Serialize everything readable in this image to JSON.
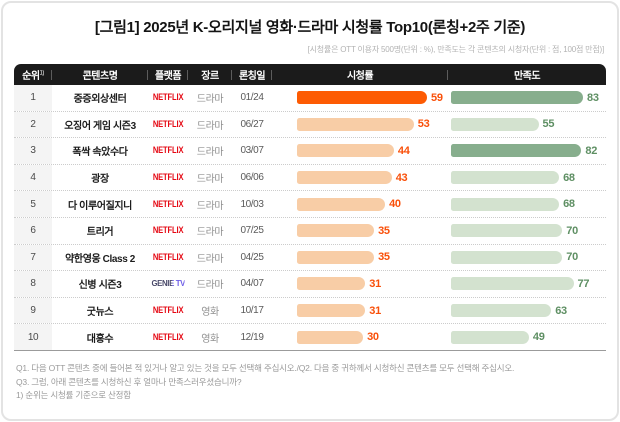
{
  "colors": {
    "header_bg": "#1b1b1b",
    "netflix_red": "#e50914",
    "genie_dark": "#474768",
    "genie_purple": "#6c5ce7",
    "rating_strong": "#fd5b03",
    "rating_light": "#f8cda6",
    "rating_value": "#f9500a",
    "sat_dark": "#87ae8d",
    "sat_light": "#d3e2cf",
    "sat_value": "#5e8f63"
  },
  "header": {
    "title": "[그림1] 2025년 K-오리지널 영화·드라마 시청률 Top10(론칭+2주 기준)",
    "subtitle": "[시청률은 OTT 이용자 500명(단위 : %), 만족도는 각 콘텐츠의 시청자(단위 : 점, 100점 만점)]"
  },
  "table": {
    "columns": {
      "rank": "순위",
      "rank_sup": "1)",
      "title": "콘텐츠명",
      "platform": "플랫폼",
      "genre": "장르",
      "launch": "론칭일",
      "rating": "시청률",
      "satisfaction": "만족도"
    },
    "rows": [
      {
        "rank": "1",
        "title": "중증외상센터",
        "platform": "NETFLIX",
        "genre": "드라마",
        "launch": "01/24",
        "rating": 59,
        "satisfaction": 83,
        "rating_tone": "strong",
        "sat_tone": "dark"
      },
      {
        "rank": "2",
        "title": "오징어 게임 시즌3",
        "platform": "NETFLIX",
        "genre": "드라마",
        "launch": "06/27",
        "rating": 53,
        "satisfaction": 55,
        "rating_tone": "light",
        "sat_tone": "light"
      },
      {
        "rank": "3",
        "title": "폭싹 속았수다",
        "platform": "NETFLIX",
        "genre": "드라마",
        "launch": "03/07",
        "rating": 44,
        "satisfaction": 82,
        "rating_tone": "light",
        "sat_tone": "dark"
      },
      {
        "rank": "4",
        "title": "광장",
        "platform": "NETFLIX",
        "genre": "드라마",
        "launch": "06/06",
        "rating": 43,
        "satisfaction": 68,
        "rating_tone": "light",
        "sat_tone": "light"
      },
      {
        "rank": "5",
        "title": "다 이루어질지니",
        "platform": "NETFLIX",
        "genre": "드라마",
        "launch": "10/03",
        "rating": 40,
        "satisfaction": 68,
        "rating_tone": "light",
        "sat_tone": "light"
      },
      {
        "rank": "6",
        "title": "트리거",
        "platform": "NETFLIX",
        "genre": "드라마",
        "launch": "07/25",
        "rating": 35,
        "satisfaction": 70,
        "rating_tone": "light",
        "sat_tone": "light"
      },
      {
        "rank": "7",
        "title": "약한영웅 Class 2",
        "platform": "NETFLIX",
        "genre": "드라마",
        "launch": "04/25",
        "rating": 35,
        "satisfaction": 70,
        "rating_tone": "light",
        "sat_tone": "light"
      },
      {
        "rank": "8",
        "title": "신병 시즌3",
        "platform": "GENIE TV",
        "genre": "드라마",
        "launch": "04/07",
        "rating": 31,
        "satisfaction": 77,
        "rating_tone": "light",
        "sat_tone": "light"
      },
      {
        "rank": "9",
        "title": "굿뉴스",
        "platform": "NETFLIX",
        "genre": "영화",
        "launch": "10/17",
        "rating": 31,
        "satisfaction": 63,
        "rating_tone": "light",
        "sat_tone": "light"
      },
      {
        "rank": "10",
        "title": "대홍수",
        "platform": "NETFLIX",
        "genre": "영화",
        "launch": "12/19",
        "rating": 30,
        "satisfaction": 49,
        "rating_tone": "light",
        "sat_tone": "light"
      }
    ]
  },
  "footnotes": [
    "Q1. 다음 OTT 콘텐츠 중에 들어본 적 있거나 알고 있는 것을 모두 선택해 주십시오./Q2. 다음 중 귀하께서 시청하신 콘텐츠를 모두 선택해 주십시오.",
    "Q3. 그럼, 아래 콘텐츠를 시청하신 후 얼마나 만족스러우셨습니까?",
    "1) 순위는 시청률 기준으로 산정함"
  ],
  "chart_data": {
    "type": "bar",
    "orientation": "horizontal",
    "title": "[그림1] 2025년 K-오리지널 영화·드라마 시청률 Top10(론칭+2주 기준)",
    "subtitle": "[시청률은 OTT 이용자 500명(단위 : %), 만족도는 각 콘텐츠의 시청자(단위 : 점, 100점 만점)]",
    "categories": [
      "중증외상센터",
      "오징어 게임 시즌3",
      "폭싹 속았수다",
      "광장",
      "다 이루어질지니",
      "트리거",
      "약한영웅 Class 2",
      "신병 시즌3",
      "굿뉴스",
      "대홍수"
    ],
    "series": [
      {
        "name": "시청률",
        "unit": "%",
        "values": [
          59,
          53,
          44,
          43,
          40,
          35,
          35,
          31,
          31,
          30
        ]
      },
      {
        "name": "만족도",
        "unit": "점",
        "values": [
          83,
          55,
          82,
          68,
          68,
          70,
          70,
          77,
          63,
          49
        ]
      }
    ],
    "xlim": [
      0,
      100
    ],
    "grid": false,
    "legend_position": "none"
  }
}
